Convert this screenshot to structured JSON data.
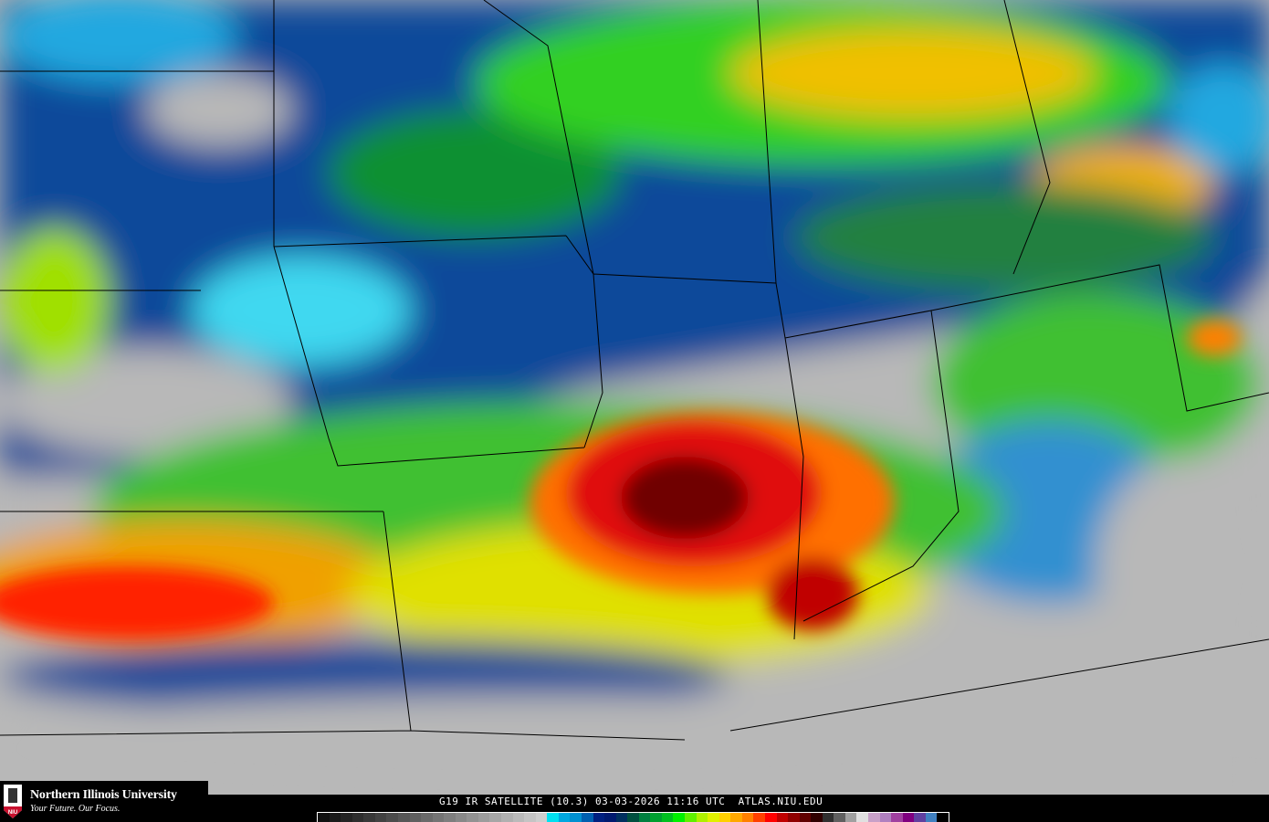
{
  "logo": {
    "name": "Northern Illinois University",
    "tagline": "Your Future. Our Focus.",
    "badge": "NIU"
  },
  "caption": "G19 IR SATELLITE (10.3) 03-03-2026 11:16 UTC  ATLAS.NIU.EDU",
  "colors": {
    "clear": "#b8b8b8",
    "colorbar": [
      "#101010",
      "#1a1a1a",
      "#242424",
      "#2e2e2e",
      "#383838",
      "#424242",
      "#4c4c4c",
      "#565656",
      "#606060",
      "#6a6a6a",
      "#747474",
      "#7e7e7e",
      "#888888",
      "#929292",
      "#9c9c9c",
      "#a6a6a6",
      "#b0b0b0",
      "#bababa",
      "#c4c4c4",
      "#cecece",
      "#00e0f0",
      "#00a8e0",
      "#0090d0",
      "#0060b0",
      "#002080",
      "#001a70",
      "#003060",
      "#005040",
      "#008040",
      "#00a030",
      "#00c020",
      "#00f000",
      "#60f000",
      "#b0f000",
      "#e0f000",
      "#ffd000",
      "#ffa800",
      "#ff8000",
      "#ff4000",
      "#ff0000",
      "#c00000",
      "#900000",
      "#600000",
      "#300000",
      "#303030",
      "#606060",
      "#a0a0a0",
      "#e0e0e0",
      "#c8a0c8",
      "#b080c0",
      "#a040a0",
      "#800080",
      "#6040a0",
      "#4080c0",
      "#000000"
    ]
  }
}
